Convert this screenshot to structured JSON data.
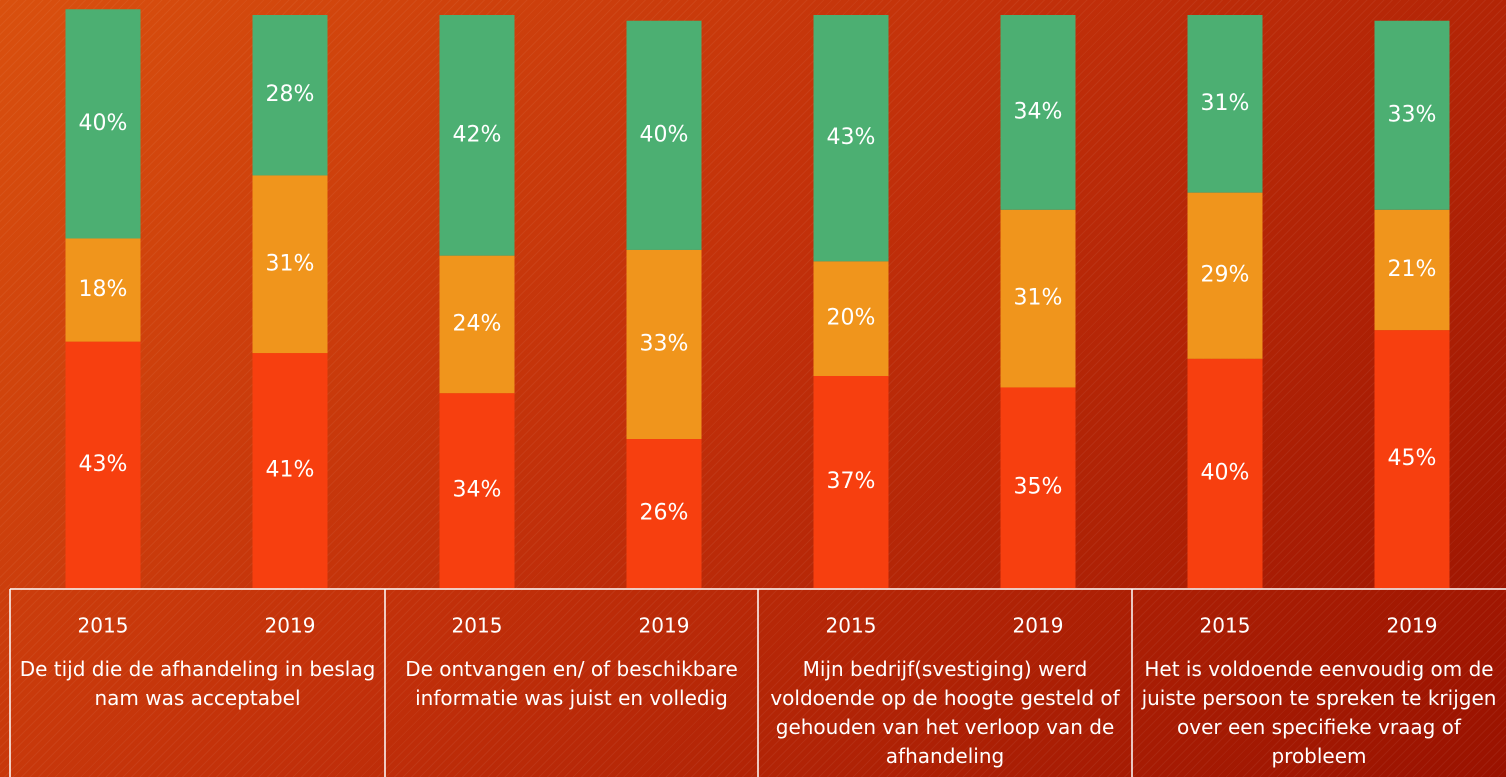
{
  "chart_data": {
    "type": "bar",
    "stacked": true,
    "categories": [
      "2015",
      "2019",
      "2015",
      "2019",
      "2015",
      "2019",
      "2015",
      "2019"
    ],
    "groups": [
      "De tijd die de afhandeling in beslag nam was acceptabel",
      "De ontvangen en/ of beschikbare informatie was juist en volledig",
      "Mijn bedrijf(svestiging) werd voldoende op de hoogte gesteld of gehouden van het verloop van de afhandeling",
      "Het is voldoende eenvoudig om de juiste persoon te spreken te krijgen over een specifieke vraag of probleem"
    ],
    "ylim": [
      0,
      100
    ],
    "series": [
      {
        "color": "#f73f0f",
        "values": [
          43,
          41,
          34,
          26,
          37,
          35,
          40,
          45
        ],
        "value_labels": [
          "43%",
          "41%",
          "34%",
          "26%",
          "37%",
          "35%",
          "40%",
          "45%"
        ]
      },
      {
        "color": "#f0951c",
        "values": [
          18,
          31,
          24,
          33,
          20,
          31,
          29,
          21
        ],
        "value_labels": [
          "18%",
          "31%",
          "24%",
          "33%",
          "20%",
          "31%",
          "29%",
          "21%"
        ]
      },
      {
        "color": "#4caf72",
        "values": [
          40,
          28,
          42,
          40,
          43,
          34,
          31,
          33
        ],
        "value_labels": [
          "40%",
          "28%",
          "42%",
          "40%",
          "43%",
          "34%",
          "31%",
          "33%"
        ]
      }
    ]
  }
}
